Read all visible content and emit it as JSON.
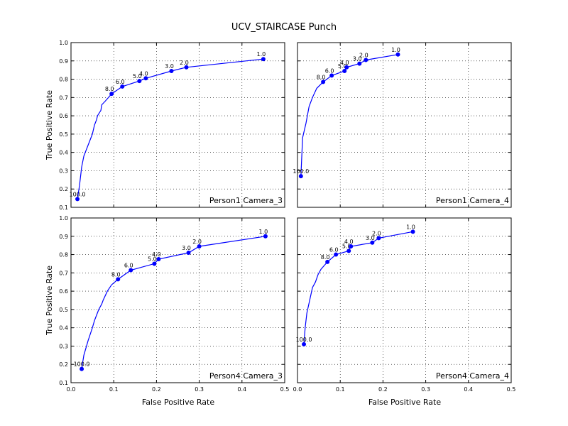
{
  "figure": {
    "title": "UCV_STAIRCASE Punch",
    "xlabel": "False Positive Rate",
    "ylabel": "True Positive Rate"
  },
  "colors": {
    "series": "#0000ff",
    "axes": "#000000"
  },
  "chart_data": [
    {
      "type": "line",
      "subtitle": "Person1 Camera_3",
      "xlim": [
        0.0,
        0.5
      ],
      "ylim": [
        0.1,
        1.0
      ],
      "xticks": [
        "",
        "",
        "",
        "",
        "",
        ""
      ],
      "yticks": [
        "0.1",
        "0.2",
        "0.3",
        "0.4",
        "0.5",
        "0.6",
        "0.7",
        "0.8",
        "0.9",
        "1.0"
      ],
      "grid": true,
      "curve": [
        [
          0.015,
          0.145
        ],
        [
          0.02,
          0.22
        ],
        [
          0.025,
          0.32
        ],
        [
          0.03,
          0.38
        ],
        [
          0.04,
          0.44
        ],
        [
          0.05,
          0.5
        ],
        [
          0.055,
          0.55
        ],
        [
          0.06,
          0.58
        ],
        [
          0.062,
          0.6
        ],
        [
          0.07,
          0.63
        ],
        [
          0.072,
          0.66
        ],
        [
          0.08,
          0.68
        ],
        [
          0.095,
          0.72
        ],
        [
          0.12,
          0.76
        ],
        [
          0.16,
          0.79
        ],
        [
          0.175,
          0.805
        ],
        [
          0.235,
          0.845
        ],
        [
          0.27,
          0.865
        ],
        [
          0.45,
          0.91
        ]
      ],
      "points": [
        {
          "x": 0.015,
          "y": 0.145,
          "label": "100.0"
        },
        {
          "x": 0.095,
          "y": 0.72,
          "label": "8.0"
        },
        {
          "x": 0.12,
          "y": 0.76,
          "label": "6.0"
        },
        {
          "x": 0.16,
          "y": 0.79,
          "label": "5.0"
        },
        {
          "x": 0.175,
          "y": 0.805,
          "label": "4.0"
        },
        {
          "x": 0.235,
          "y": 0.845,
          "label": "3.0"
        },
        {
          "x": 0.27,
          "y": 0.865,
          "label": "2.0"
        },
        {
          "x": 0.45,
          "y": 0.91,
          "label": "1.0"
        }
      ]
    },
    {
      "type": "line",
      "subtitle": "Person1 Camera_4",
      "xlim": [
        0.0,
        0.5
      ],
      "ylim": [
        0.1,
        1.0
      ],
      "xticks": [
        "",
        "",
        "",
        "",
        "",
        ""
      ],
      "yticks": [
        "",
        "",
        "",
        "",
        "",
        "",
        "",
        "",
        "",
        ""
      ],
      "grid": true,
      "curve": [
        [
          0.008,
          0.27
        ],
        [
          0.012,
          0.48
        ],
        [
          0.02,
          0.56
        ],
        [
          0.027,
          0.65
        ],
        [
          0.035,
          0.7
        ],
        [
          0.045,
          0.75
        ],
        [
          0.06,
          0.785
        ],
        [
          0.08,
          0.82
        ],
        [
          0.11,
          0.845
        ],
        [
          0.115,
          0.865
        ],
        [
          0.145,
          0.885
        ],
        [
          0.16,
          0.905
        ],
        [
          0.235,
          0.935
        ]
      ],
      "points": [
        {
          "x": 0.008,
          "y": 0.27,
          "label": "100.0"
        },
        {
          "x": 0.06,
          "y": 0.785,
          "label": "8.0"
        },
        {
          "x": 0.08,
          "y": 0.82,
          "label": "6.0"
        },
        {
          "x": 0.11,
          "y": 0.845,
          "label": "5.0"
        },
        {
          "x": 0.115,
          "y": 0.865,
          "label": "4.0"
        },
        {
          "x": 0.145,
          "y": 0.885,
          "label": "3.0"
        },
        {
          "x": 0.16,
          "y": 0.905,
          "label": "2.0"
        },
        {
          "x": 0.235,
          "y": 0.935,
          "label": "1.0"
        }
      ]
    },
    {
      "type": "line",
      "subtitle": "Person4 Camera_3",
      "xlim": [
        0.0,
        0.5
      ],
      "ylim": [
        0.1,
        1.0
      ],
      "xticks": [
        "0.0",
        "0.1",
        "0.2",
        "0.3",
        "0.4",
        "0.5"
      ],
      "yticks": [
        "0.1",
        "0.2",
        "0.3",
        "0.4",
        "0.5",
        "0.6",
        "0.7",
        "0.8",
        "0.9",
        "1.0"
      ],
      "grid": true,
      "curve": [
        [
          0.025,
          0.175
        ],
        [
          0.03,
          0.25
        ],
        [
          0.04,
          0.33
        ],
        [
          0.05,
          0.4
        ],
        [
          0.055,
          0.44
        ],
        [
          0.06,
          0.47
        ],
        [
          0.065,
          0.5
        ],
        [
          0.072,
          0.53
        ],
        [
          0.075,
          0.55
        ],
        [
          0.085,
          0.6
        ],
        [
          0.095,
          0.635
        ],
        [
          0.11,
          0.665
        ],
        [
          0.14,
          0.715
        ],
        [
          0.195,
          0.75
        ],
        [
          0.205,
          0.775
        ],
        [
          0.275,
          0.81
        ],
        [
          0.3,
          0.845
        ],
        [
          0.455,
          0.9
        ]
      ],
      "points": [
        {
          "x": 0.025,
          "y": 0.175,
          "label": "100.0"
        },
        {
          "x": 0.11,
          "y": 0.665,
          "label": "8.0"
        },
        {
          "x": 0.14,
          "y": 0.715,
          "label": "6.0"
        },
        {
          "x": 0.195,
          "y": 0.75,
          "label": "5.0"
        },
        {
          "x": 0.205,
          "y": 0.775,
          "label": "4.0"
        },
        {
          "x": 0.275,
          "y": 0.81,
          "label": "3.0"
        },
        {
          "x": 0.3,
          "y": 0.845,
          "label": "2.0"
        },
        {
          "x": 0.455,
          "y": 0.9,
          "label": "1.0"
        }
      ]
    },
    {
      "type": "line",
      "subtitle": "Person4 Camera_4",
      "xlim": [
        0.0,
        0.5
      ],
      "ylim": [
        0.1,
        1.0
      ],
      "xticks": [
        "0.0",
        "0.1",
        "0.2",
        "0.3",
        "0.4",
        "0.5"
      ],
      "yticks": [
        "",
        "",
        "",
        "",
        "",
        "",
        "",
        "",
        "",
        ""
      ],
      "grid": true,
      "curve": [
        [
          0.015,
          0.31
        ],
        [
          0.018,
          0.4
        ],
        [
          0.022,
          0.48
        ],
        [
          0.035,
          0.62
        ],
        [
          0.042,
          0.65
        ],
        [
          0.048,
          0.69
        ],
        [
          0.055,
          0.72
        ],
        [
          0.07,
          0.76
        ],
        [
          0.09,
          0.8
        ],
        [
          0.12,
          0.82
        ],
        [
          0.125,
          0.845
        ],
        [
          0.175,
          0.865
        ],
        [
          0.19,
          0.89
        ],
        [
          0.27,
          0.925
        ]
      ],
      "points": [
        {
          "x": 0.015,
          "y": 0.31,
          "label": "100.0"
        },
        {
          "x": 0.07,
          "y": 0.76,
          "label": "8.0"
        },
        {
          "x": 0.09,
          "y": 0.8,
          "label": "6.0"
        },
        {
          "x": 0.12,
          "y": 0.82,
          "label": "5.0"
        },
        {
          "x": 0.125,
          "y": 0.845,
          "label": "4.0"
        },
        {
          "x": 0.175,
          "y": 0.865,
          "label": "3.0"
        },
        {
          "x": 0.19,
          "y": 0.89,
          "label": "2.0"
        },
        {
          "x": 0.27,
          "y": 0.925,
          "label": "1.0"
        }
      ]
    }
  ]
}
